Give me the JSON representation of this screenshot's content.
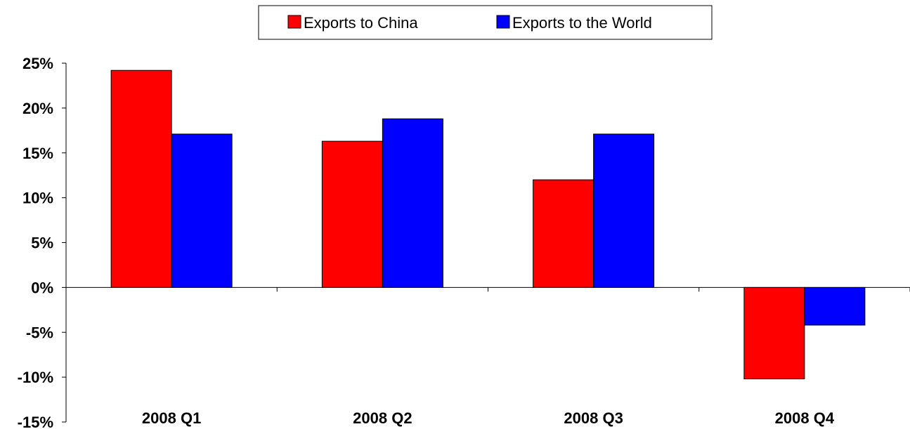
{
  "chart_data": {
    "type": "bar",
    "categories": [
      "2008 Q1",
      "2008 Q2",
      "2008 Q3",
      "2008 Q4"
    ],
    "series": [
      {
        "name": "Exports to China",
        "color": "#ff0000",
        "values": [
          24.2,
          16.3,
          12.0,
          -10.2
        ]
      },
      {
        "name": "Exports to the World",
        "color": "#0000ff",
        "values": [
          17.1,
          18.8,
          17.1,
          -4.2
        ]
      }
    ],
    "ylim": [
      -15,
      25
    ],
    "ytick_step": 5,
    "ytick_labels": [
      "-15%",
      "-10%",
      "-5%",
      "0%",
      "5%",
      "10%",
      "15%",
      "20%",
      "25%"
    ],
    "ytick_values": [
      -15,
      -10,
      -5,
      0,
      5,
      10,
      15,
      20,
      25
    ],
    "legend_position": "top-center",
    "grid": false,
    "title": "",
    "xlabel": "",
    "ylabel": ""
  }
}
